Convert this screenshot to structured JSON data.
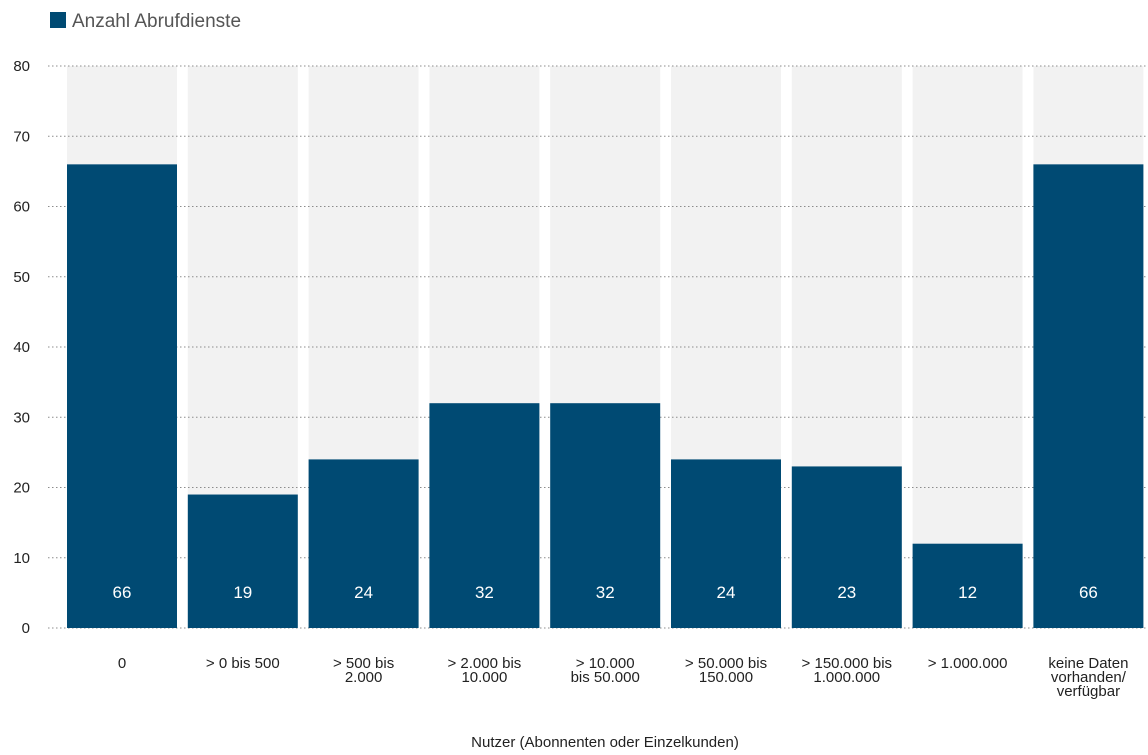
{
  "chart_data": {
    "type": "bar",
    "legend": {
      "label": "Anzahl Abrufdienste",
      "position": "top-left"
    },
    "series": [
      {
        "name": "Anzahl Abrufdienste",
        "color": "#004a73",
        "values": [
          66,
          19,
          24,
          32,
          32,
          24,
          23,
          12,
          66
        ]
      }
    ],
    "categories": [
      [
        "0"
      ],
      [
        "> 0 bis 500"
      ],
      [
        "> 500 bis",
        "2.000"
      ],
      [
        ">  2.000 bis",
        "10.000"
      ],
      [
        "> 10.000",
        "bis 50.000"
      ],
      [
        "> 50.000 bis",
        "150.000"
      ],
      [
        "> 150.000 bis",
        "1.000.000"
      ],
      [
        "> 1.000.000"
      ],
      [
        "keine Daten",
        "vorhanden/",
        "verfügbar"
      ]
    ],
    "data_labels": [
      "66",
      "19",
      "24",
      "32",
      "32",
      "24",
      "23",
      "12",
      "66"
    ],
    "xlabel": "Nutzer (Abonnenten oder Einzelkunden)",
    "ylabel": "",
    "ylim": [
      0,
      80
    ],
    "yticks": [
      0,
      10,
      20,
      30,
      40,
      50,
      60,
      70,
      80
    ],
    "grid": true,
    "background_bar_color": "#f2f2f2",
    "grid_color": "#8c8c8c"
  }
}
